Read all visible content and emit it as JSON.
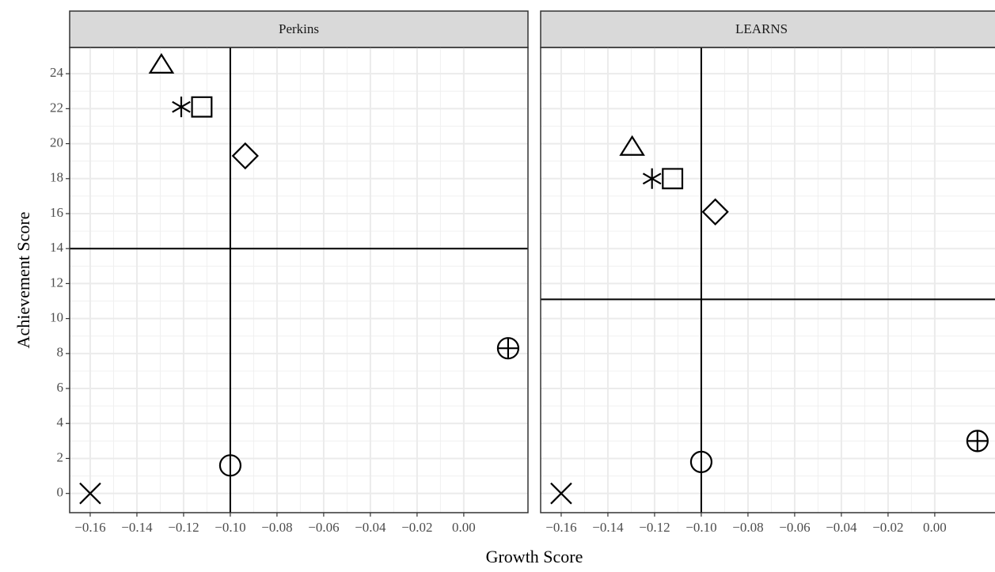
{
  "xlabel": "Growth Score",
  "ylabel": "Achievement Score",
  "chart_data": [
    {
      "type": "scatter",
      "title": "Perkins",
      "x": [
        -0.1295,
        -0.121,
        -0.1122,
        -0.0936,
        -0.1,
        -0.16,
        0.019
      ],
      "y": [
        24.5,
        22.1,
        22.1,
        19.3,
        1.6,
        0,
        8.3
      ],
      "shapes": [
        "triangle",
        "asterisk",
        "square",
        "diamond",
        "circle",
        "cross",
        "circle-plus"
      ],
      "color": "#000000",
      "vline": -0.1,
      "hline": 14,
      "xlim": [
        -0.1688,
        0.0275
      ],
      "ylim": [
        -1.1,
        25.5
      ],
      "xticks": [
        {
          "value": -0.16,
          "label": "−0.16"
        },
        {
          "value": -0.14,
          "label": "−0.14"
        },
        {
          "value": -0.12,
          "label": "−0.12"
        },
        {
          "value": -0.1,
          "label": "−0.10"
        },
        {
          "value": -0.08,
          "label": "−0.08"
        },
        {
          "value": -0.06,
          "label": "−0.06"
        },
        {
          "value": -0.04,
          "label": "−0.04"
        },
        {
          "value": -0.02,
          "label": "−0.02"
        },
        {
          "value": 0,
          "label": "0.00"
        }
      ],
      "yticks": [
        0,
        2,
        4,
        6,
        8,
        10,
        12,
        14,
        16,
        18,
        20,
        22,
        24
      ],
      "grid": true
    },
    {
      "type": "scatter",
      "title": "LEARNS",
      "x": [
        -0.1296,
        -0.1211,
        -0.1123,
        -0.094,
        -0.1,
        -0.16,
        0.0183
      ],
      "y": [
        19.8,
        18,
        18,
        16.1,
        1.8,
        0,
        3.0
      ],
      "shapes": [
        "triangle",
        "asterisk",
        "square",
        "diamond",
        "circle",
        "cross",
        "circle-plus"
      ],
      "color": "#000000",
      "vline": -0.1,
      "hline": 11.1,
      "xlim": [
        -0.1688,
        0.0275
      ],
      "ylim": [
        -1.1,
        25.5
      ],
      "xticks": [
        {
          "value": -0.16,
          "label": "−0.16"
        },
        {
          "value": -0.14,
          "label": "−0.14"
        },
        {
          "value": -0.12,
          "label": "−0.12"
        },
        {
          "value": -0.1,
          "label": "−0.10"
        },
        {
          "value": -0.08,
          "label": "−0.08"
        },
        {
          "value": -0.06,
          "label": "−0.06"
        },
        {
          "value": -0.04,
          "label": "−0.04"
        },
        {
          "value": -0.02,
          "label": "−0.02"
        },
        {
          "value": 0,
          "label": "0.00"
        }
      ],
      "yticks": [
        0,
        2,
        4,
        6,
        8,
        10,
        12,
        14,
        16,
        18,
        20,
        22,
        24
      ],
      "grid": true
    }
  ]
}
